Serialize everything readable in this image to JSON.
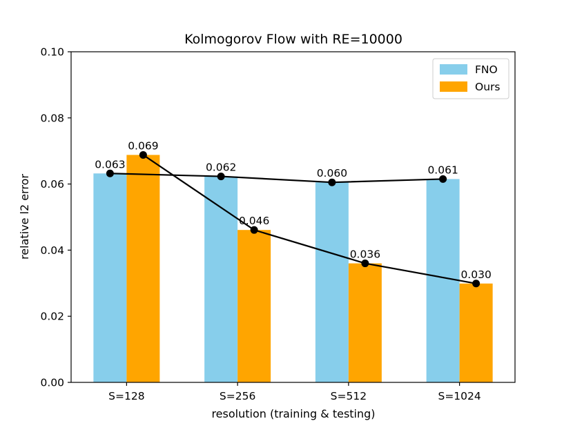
{
  "chart_data": {
    "type": "bar",
    "title": "Kolmogorov Flow with RE=10000",
    "xlabel": "resolution (training & testing)",
    "ylabel": "relative l2 error",
    "categories": [
      "S=128",
      "S=256",
      "S=512",
      "S=1024"
    ],
    "ylim": [
      0.0,
      0.1
    ],
    "yticks": [
      0.0,
      0.02,
      0.04,
      0.06,
      0.08,
      0.1
    ],
    "ytick_labels": [
      "0.00",
      "0.02",
      "0.04",
      "0.06",
      "0.08",
      "0.10"
    ],
    "grid": false,
    "legend_position": "top-right",
    "series": [
      {
        "name": "FNO",
        "values": [
          0.0632,
          0.0623,
          0.0605,
          0.0615
        ],
        "labels": [
          "0.063",
          "0.062",
          "0.060",
          "0.061"
        ],
        "color": "#87CEEB"
      },
      {
        "name": "Ours",
        "values": [
          0.0688,
          0.0461,
          0.036,
          0.0299
        ],
        "labels": [
          "0.069",
          "0.046",
          "0.036",
          "0.030"
        ],
        "color": "#FFA500"
      }
    ],
    "line_color": "#000000"
  }
}
